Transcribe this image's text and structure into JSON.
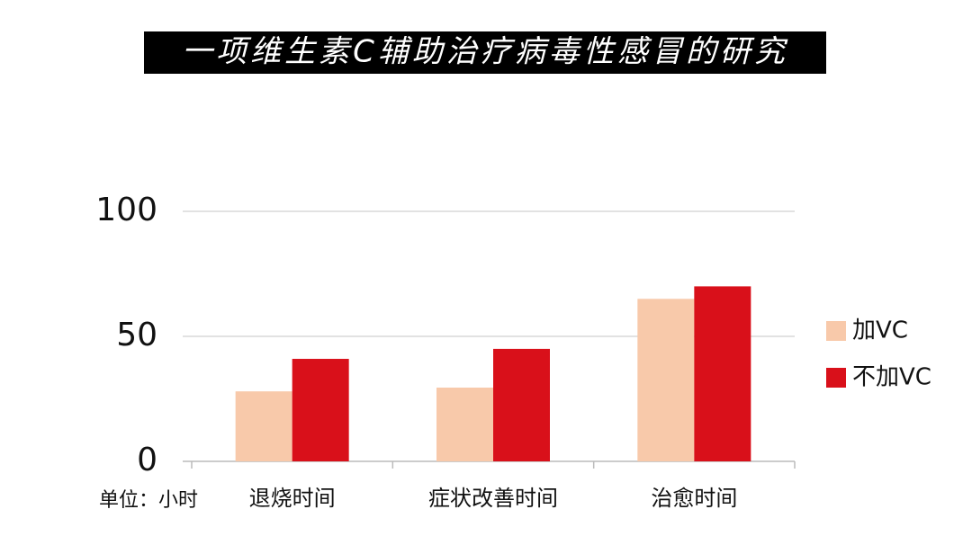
{
  "chart_data": {
    "type": "bar",
    "title": "一项维生素C辅助治疗病毒性感冒的研究",
    "unit_label": "单位：小时",
    "categories": [
      "退烧时间",
      "症状改善时间",
      "治愈时间"
    ],
    "series": [
      {
        "name": "加VC",
        "color": "#f8c9aa",
        "values": [
          28,
          29.5,
          65
        ]
      },
      {
        "name": "不加VC",
        "color": "#d9101a",
        "values": [
          41,
          45,
          70
        ]
      }
    ],
    "ylim": [
      0,
      100
    ],
    "yticks": [
      0,
      50,
      100
    ],
    "grid": true,
    "legend": "right"
  }
}
